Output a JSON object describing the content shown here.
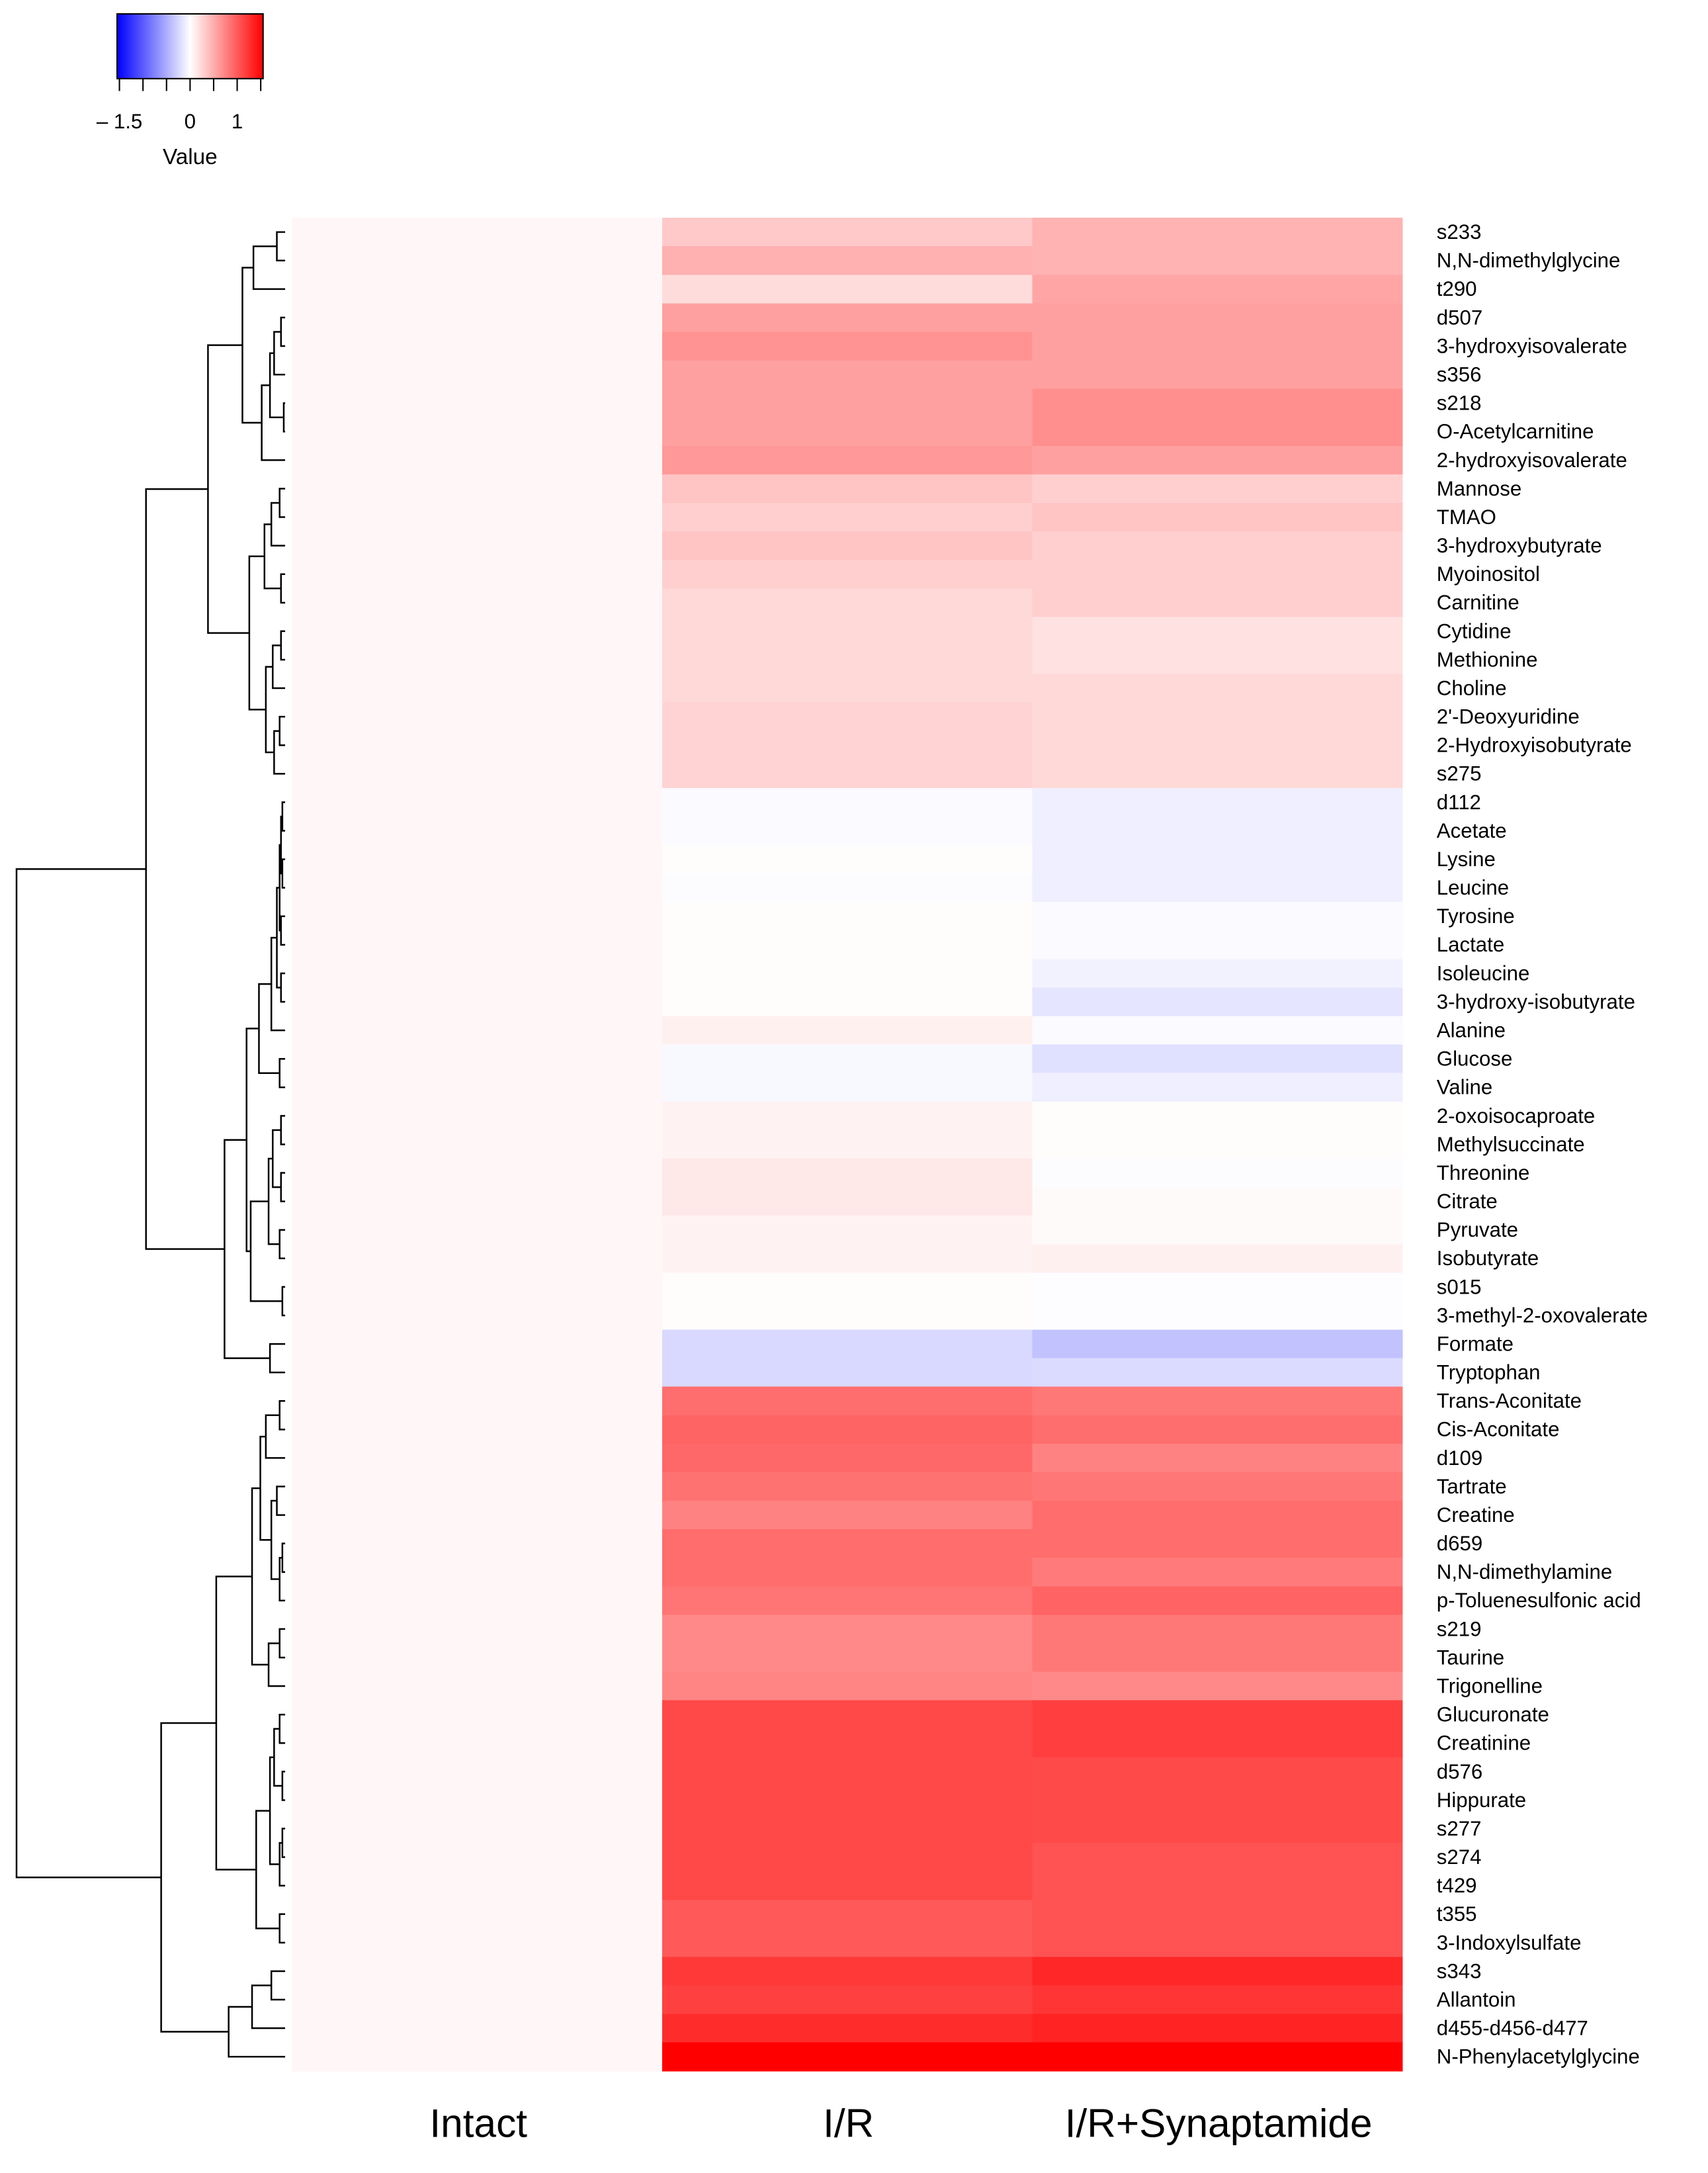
{
  "chart_data": {
    "type": "heatmap",
    "columns": [
      "Intact",
      "I/R",
      "I/R+Synaptamide"
    ],
    "rows": [
      "s233",
      "N,N-dimethylglycine",
      "t290",
      "d507",
      "3-hydroxyisovalerate",
      "s356",
      "s218",
      "O-Acetylcarnitine",
      "2-hydroxyisovalerate",
      "Mannose",
      "TMAO",
      "3-hydroxybutyrate",
      "Myoinositol",
      "Carnitine",
      "Cytidine",
      "Methionine",
      "Choline",
      "2'-Deoxyuridine",
      "2-Hydroxyisobutyrate",
      "s275",
      "d112",
      "Acetate",
      "Lysine",
      "Leucine",
      "Tyrosine",
      "Lactate",
      "Isoleucine",
      "3-hydroxy-isobutyrate",
      "Alanine",
      "Glucose",
      "Valine",
      "2-oxoisocaproate",
      "Methylsuccinate",
      "Threonine",
      "Citrate",
      "Pyruvate",
      "Isobutyrate",
      "s015",
      "3-methyl-2-oxovalerate",
      "Formate",
      "Tryptophan",
      "Trans-Aconitate",
      "Cis-Aconitate",
      "d109",
      "Tartrate",
      "Creatine",
      "d659",
      "N,N-dimethylamine",
      "p-Toluenesulfonic acid",
      "s219",
      "Taurine",
      "Trigonelline",
      "Glucuronate",
      "Creatinine",
      "d576",
      "Hippurate",
      "s277",
      "s274",
      "t429",
      "t355",
      "3-Indoxylsulfate",
      "s343",
      "Allantoin",
      "d455-d456-d477",
      "N-Phenylacetylglycine"
    ],
    "values": [
      [
        0.05,
        0.33,
        0.46
      ],
      [
        0.05,
        0.48,
        0.46
      ],
      [
        0.05,
        0.21,
        0.55
      ],
      [
        0.05,
        0.58,
        0.58
      ],
      [
        0.05,
        0.66,
        0.58
      ],
      [
        0.05,
        0.58,
        0.58
      ],
      [
        0.05,
        0.58,
        0.68
      ],
      [
        0.05,
        0.58,
        0.68
      ],
      [
        0.05,
        0.62,
        0.58
      ],
      [
        0.05,
        0.36,
        0.29
      ],
      [
        0.05,
        0.29,
        0.36
      ],
      [
        0.05,
        0.36,
        0.29
      ],
      [
        0.05,
        0.29,
        0.29
      ],
      [
        0.05,
        0.24,
        0.29
      ],
      [
        0.05,
        0.24,
        0.18
      ],
      [
        0.05,
        0.24,
        0.18
      ],
      [
        0.05,
        0.24,
        0.24
      ],
      [
        0.05,
        0.27,
        0.24
      ],
      [
        0.05,
        0.27,
        0.24
      ],
      [
        0.05,
        0.27,
        0.24
      ],
      [
        0.05,
        -0.03,
        -0.1
      ],
      [
        0.05,
        -0.03,
        -0.1
      ],
      [
        0.05,
        0.02,
        -0.1
      ],
      [
        0.05,
        -0.02,
        -0.1
      ],
      [
        0.05,
        0.02,
        -0.03
      ],
      [
        0.05,
        0.02,
        -0.03
      ],
      [
        0.05,
        0.02,
        -0.08
      ],
      [
        0.05,
        0.02,
        -0.16
      ],
      [
        0.05,
        0.09,
        -0.03
      ],
      [
        0.05,
        -0.04,
        -0.19
      ],
      [
        0.05,
        -0.04,
        -0.1
      ],
      [
        0.05,
        0.08,
        0.02
      ],
      [
        0.05,
        0.08,
        0.02
      ],
      [
        0.05,
        0.14,
        -0.02
      ],
      [
        0.05,
        0.14,
        0.03
      ],
      [
        0.05,
        0.08,
        0.03
      ],
      [
        0.05,
        0.08,
        0.09
      ],
      [
        0.05,
        0.02,
        -0.01
      ],
      [
        0.05,
        0.02,
        -0.01
      ],
      [
        0.05,
        -0.23,
        -0.37
      ],
      [
        0.05,
        -0.23,
        -0.22
      ],
      [
        0.05,
        0.88,
        0.82
      ],
      [
        0.05,
        0.94,
        0.88
      ],
      [
        0.05,
        0.92,
        0.76
      ],
      [
        0.05,
        0.86,
        0.83
      ],
      [
        0.05,
        0.76,
        0.89
      ],
      [
        0.05,
        0.89,
        0.89
      ],
      [
        0.05,
        0.89,
        0.8
      ],
      [
        0.05,
        0.84,
        0.95
      ],
      [
        0.05,
        0.72,
        0.82
      ],
      [
        0.05,
        0.72,
        0.82
      ],
      [
        0.05,
        0.74,
        0.72
      ],
      [
        0.05,
        1.11,
        1.17
      ],
      [
        0.05,
        1.11,
        1.17
      ],
      [
        0.05,
        1.11,
        1.1
      ],
      [
        0.05,
        1.11,
        1.1
      ],
      [
        0.05,
        1.11,
        1.1
      ],
      [
        0.05,
        1.11,
        1.05
      ],
      [
        0.05,
        1.11,
        1.05
      ],
      [
        0.05,
        1.01,
        1.05
      ],
      [
        0.05,
        1.01,
        1.05
      ],
      [
        0.05,
        1.21,
        1.31
      ],
      [
        0.05,
        1.16,
        1.23
      ],
      [
        0.05,
        1.28,
        1.34
      ],
      [
        0.05,
        1.55,
        1.55
      ]
    ],
    "color_scale": {
      "low": "#0000FF",
      "mid": "#FFFFFF",
      "high": "#FF0000",
      "range": [
        -1.55,
        1.55
      ]
    },
    "legend": {
      "title": "Value",
      "placement": "top-left",
      "ticks": [
        -1.5,
        -1,
        -0.5,
        0,
        0.5,
        1,
        1.5
      ],
      "tick_labels": [
        {
          "value": -1.5,
          "label": "– 1.5"
        },
        {
          "value": 0,
          "label": "0"
        },
        {
          "value": 1,
          "label": "1"
        }
      ]
    },
    "row_dendrogram": true,
    "grid": false
  }
}
